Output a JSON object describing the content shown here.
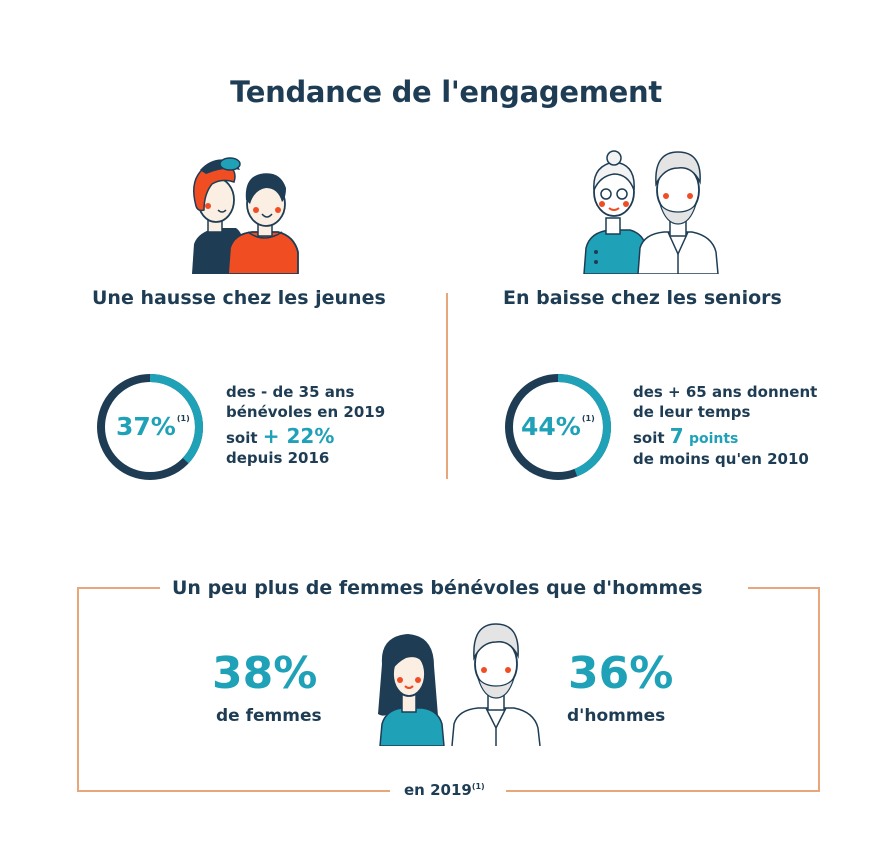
{
  "title": "Tendance de l'engagement",
  "young": {
    "heading": "Une hausse chez les jeunes",
    "percent": "37%",
    "footnote": "(1)",
    "ring_fraction": 0.37,
    "line1": "des - de 35 ans",
    "line2": "bénévoles en 2019",
    "line3_prefix": "soit",
    "line3_value": "+ 22%",
    "line4": "depuis 2016"
  },
  "seniors": {
    "heading": "En baisse chez les seniors",
    "percent": "44%",
    "footnote": "(1)",
    "ring_fraction": 0.44,
    "line1": "des + 65 ans donnent",
    "line2": "de leur temps",
    "line3_prefix": "soit",
    "line3_value": "7",
    "line3_suffix": "points",
    "line4": "de moins qu'en 2010"
  },
  "gender": {
    "heading": "Un peu plus de femmes bénévoles que d'hommes",
    "women_percent": "38%",
    "women_label": "de femmes",
    "men_percent": "36%",
    "men_label": "d'hommes",
    "year": "en 2019",
    "footnote": "(1)"
  },
  "colors": {
    "navy": "#1e3d54",
    "teal": "#1fa1b8",
    "orange_line": "#e8a77a",
    "red_orange": "#f04d23"
  },
  "icons": [
    "young-people-icon",
    "senior-people-icon",
    "woman-icon",
    "man-icon"
  ]
}
